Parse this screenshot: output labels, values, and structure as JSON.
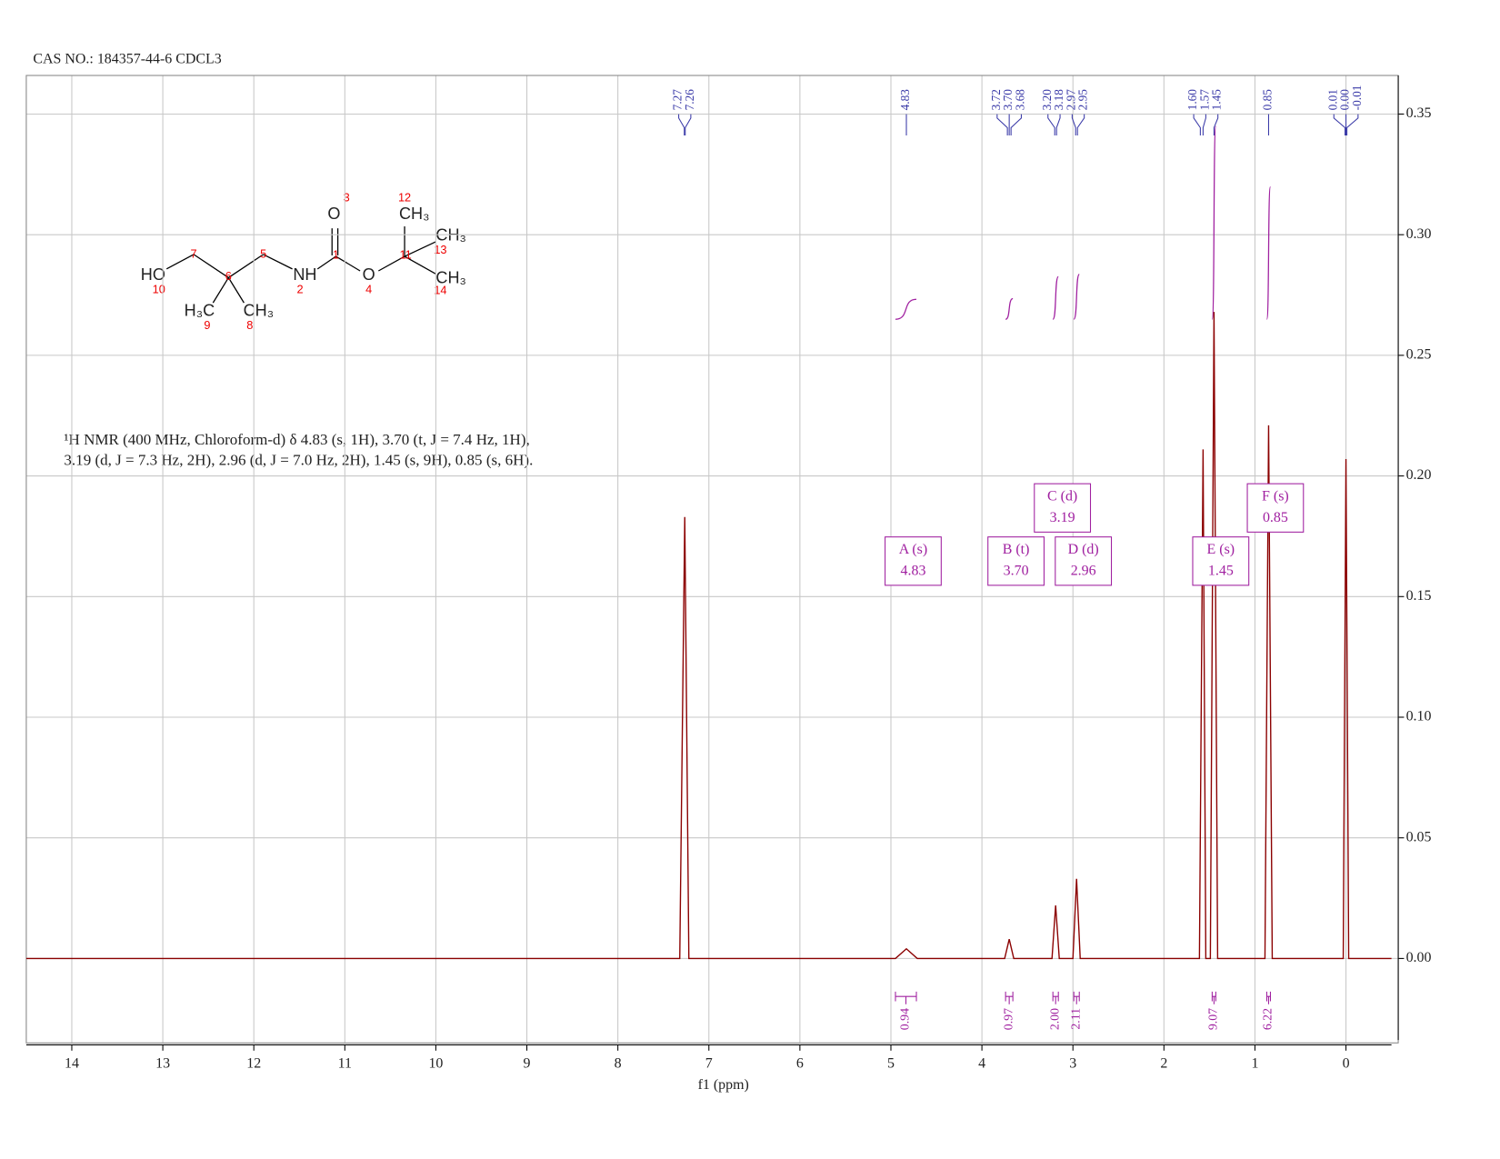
{
  "header": "CAS NO.: 184357-44-6 CDCL3",
  "description": [
    "¹H NMR (400 MHz, Chloroform-d) δ 4.83 (s, 1H), 3.70 (t, J = 7.4 Hz, 1H),",
    "3.19 (d, J = 7.3 Hz, 2H), 2.96 (d, J = 7.0 Hz, 2H), 1.45 (s, 9H), 0.85 (s, 6H)."
  ],
  "structure": {
    "atoms": [
      "O",
      "CH₃",
      "CH₃",
      "CH₃",
      "HO",
      "NH",
      "O",
      "H₃C",
      "CH₃"
    ],
    "numbers": [
      "3",
      "12",
      "13",
      "14",
      "10",
      "2",
      "4",
      "9",
      "8",
      "7",
      "6",
      "5",
      "1",
      "11"
    ]
  },
  "chart_data": {
    "type": "nmr",
    "x_label": "f1 (ppm)",
    "xlim": [
      14.5,
      -0.5
    ],
    "xticks": [
      14,
      13,
      12,
      11,
      10,
      9,
      8,
      7,
      6,
      5,
      4,
      3,
      2,
      1,
      0
    ],
    "ylim": [
      -0.035,
      0.366
    ],
    "yticks": [
      {
        "value": 0,
        "label": "0.00"
      },
      0.05,
      {
        "value": 0.1,
        "label": "0.10"
      },
      0.15,
      {
        "value": 0.2,
        "label": "0.20"
      },
      0.25,
      {
        "value": 0.3,
        "label": "0.30"
      },
      0.35
    ],
    "grid": true,
    "color": "#8b0000",
    "x": [
      14.5,
      7.32,
      7.265,
      7.22,
      4.95,
      4.83,
      4.71,
      3.75,
      3.7,
      3.65,
      3.23,
      3.19,
      3.15,
      3.0,
      2.96,
      2.92,
      1.61,
      1.57,
      1.54,
      1.49,
      1.45,
      1.41,
      0.89,
      0.85,
      0.81,
      0.03,
      0,
      -0.03,
      -0.5
    ],
    "values": [
      0,
      0,
      0.183,
      0,
      0,
      0.004,
      0,
      0,
      0.008,
      0,
      0,
      0.022,
      0,
      0,
      0.033,
      0,
      0,
      0.211,
      0,
      0,
      0.268,
      0,
      0,
      0.221,
      0,
      0,
      0.207,
      0,
      0
    ],
    "peak_picks": [
      7.27,
      7.26,
      4.83,
      3.72,
      {
        "value": 3.7,
        "label": "3.70"
      },
      3.68,
      {
        "value": 3.2,
        "label": "3.20"
      },
      3.18,
      2.97,
      2.95,
      {
        "value": 1.6,
        "label": "1.60"
      },
      1.57,
      1.45,
      0.85,
      0.01,
      {
        "value": 0,
        "label": "0.00"
      },
      -0.01
    ],
    "integrals": {
      "ranges": [
        [
          4.95,
          4.72
        ],
        [
          3.74,
          3.66
        ],
        [
          3.22,
          3.16
        ],
        [
          2.99,
          2.93
        ],
        [
          1.47,
          1.43
        ],
        [
          0.87,
          0.83
        ]
      ],
      "values": [
        0.94,
        0.97,
        2,
        2.11,
        9.07,
        6.22
      ],
      "value_labels": [
        "0.94",
        "0.97",
        "2.00",
        "2.11",
        "9.07",
        "6.22"
      ]
    },
    "multiplets": [
      {
        "label": "A (s)",
        "shift": {
          "value": 4.83,
          "label": "4.83"
        }
      },
      {
        "label": "B (t)",
        "shift": {
          "value": 3.7,
          "label": "3.70"
        }
      },
      {
        "label": "C (d)",
        "shift": {
          "value": 3.19,
          "label": "3.19"
        }
      },
      {
        "label": "D (d)",
        "shift": {
          "value": 2.96,
          "label": "2.96"
        }
      },
      {
        "label": "E (s)",
        "shift": {
          "value": 1.45,
          "label": "1.45"
        }
      },
      {
        "label": "F (s)",
        "shift": {
          "value": 0.85,
          "label": "0.85"
        }
      }
    ]
  }
}
